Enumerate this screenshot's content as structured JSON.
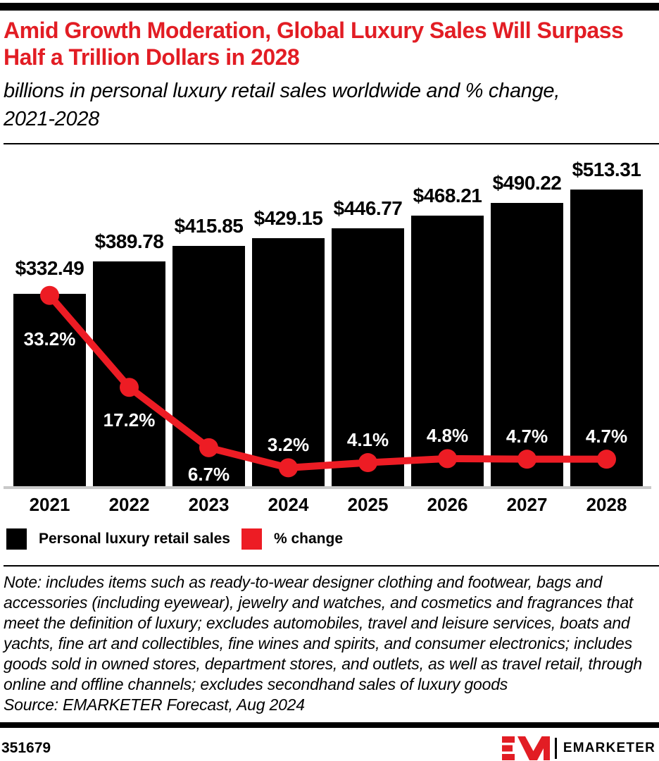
{
  "header": {
    "title": "Amid Growth Moderation, Global Luxury Sales Will Surpass Half a Trillion Dollars in 2028",
    "subtitle": "billions in personal luxury retail sales worldwide and % change, 2021-2028"
  },
  "colors": {
    "title_red": "#e21d24",
    "accent_red": "#ed1c24",
    "bar_black": "#000000",
    "axis_gray": "#c9c9c9",
    "pct_label_white": "#ffffff"
  },
  "chart_data": {
    "type": "bar",
    "combo": "bar with line overlay",
    "title": "Amid Growth Moderation, Global Luxury Sales Will Surpass Half a Trillion Dollars in 2028",
    "subtitle": "billions in personal luxury retail sales worldwide and % change, 2021-2028",
    "categories": [
      "2021",
      "2022",
      "2023",
      "2024",
      "2025",
      "2026",
      "2027",
      "2028"
    ],
    "series": [
      {
        "name": "Personal luxury retail sales",
        "type": "bar",
        "unit": "USD billions",
        "color": "#000000",
        "values": [
          332.49,
          389.78,
          415.85,
          429.15,
          446.77,
          468.21,
          490.22,
          513.31
        ],
        "labels": [
          "$332.49",
          "$389.78",
          "$415.85",
          "$429.15",
          "$446.77",
          "$468.21",
          "$490.22",
          "$513.31"
        ]
      },
      {
        "name": "% change",
        "type": "line",
        "unit": "percent",
        "color": "#ed1c24",
        "values": [
          33.2,
          17.2,
          6.7,
          3.2,
          4.1,
          4.8,
          4.7,
          4.7
        ],
        "labels": [
          "33.2%",
          "17.2%",
          "6.7%",
          "3.2%",
          "4.1%",
          "4.8%",
          "4.7%",
          "4.7%"
        ]
      }
    ],
    "bar_axis_range": [
      0,
      562
    ],
    "pct_axis_range": [
      0,
      56.4
    ],
    "grid": false,
    "legend_position": "bottom"
  },
  "footnote": {
    "note": "Note: includes items such as ready-to-wear designer clothing and footwear, bags and accessories (including eyewear), jewelry and watches, and cosmetics and fragrances that meet the definition of luxury; excludes automobiles, travel and leisure services, boats and yachts, fine art and collectibles, fine wines and spirits, and consumer electronics; includes goods sold in owned stores, department stores, and outlets, as well as travel retail, through online and offline channels; excludes secondhand sales of luxury goods",
    "source": "Source: EMARKETER Forecast, Aug 2024"
  },
  "footer": {
    "chart_id": "351679",
    "logo_mark": "EM",
    "logo_text": "EMARKETER"
  }
}
